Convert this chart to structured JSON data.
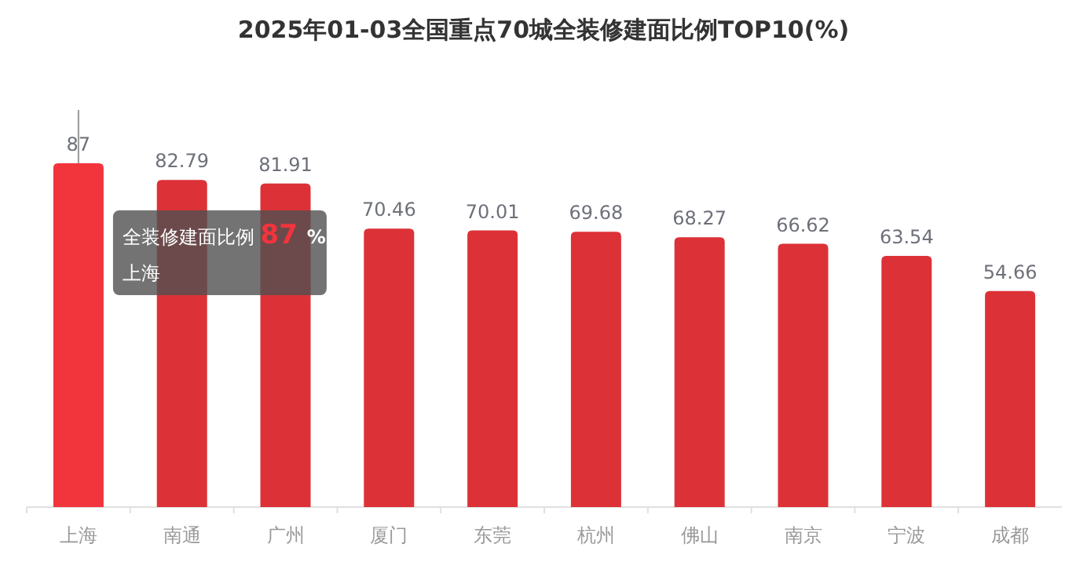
{
  "chart_data": {
    "type": "bar",
    "title": "2025年01-03全国重点70城全装修建面比例TOP10(%)",
    "categories": [
      "上海",
      "南通",
      "广州",
      "厦门",
      "东莞",
      "杭州",
      "佛山",
      "南京",
      "宁波",
      "成都"
    ],
    "values": [
      87,
      82.79,
      81.91,
      70.46,
      70.01,
      69.68,
      68.27,
      66.62,
      63.54,
      54.66
    ],
    "colors": [
      "#f2343c",
      "#dc3237",
      "#dc3237",
      "#dc3237",
      "#dc3237",
      "#dc3237",
      "#dc3237",
      "#dc3237",
      "#dc3237",
      "#dc3237"
    ],
    "data_labels": true,
    "ref_lines": [
      {
        "axis": "x",
        "value": "上海",
        "color": "#999999"
      }
    ],
    "annotations": [
      {
        "text": "全装修建面比例 87 %",
        "x": "上海",
        "y": 87
      },
      "上海"
    ]
  }
}
